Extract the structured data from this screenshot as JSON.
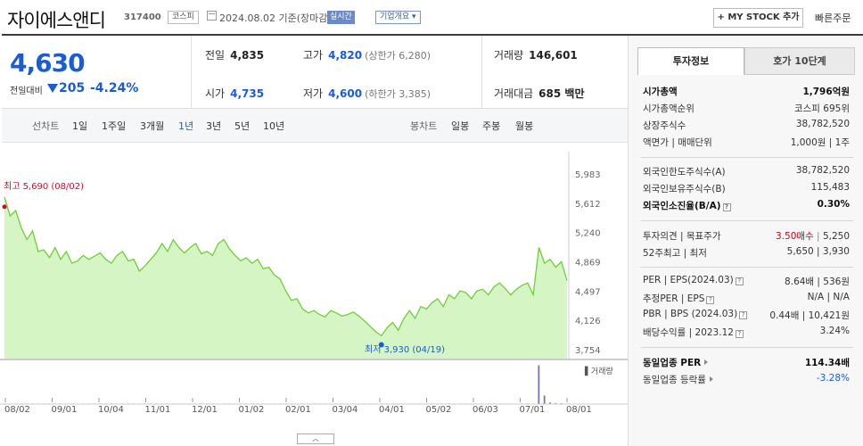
{
  "header": {
    "name": "자이에스앤디",
    "code": "317400",
    "market": "코스피",
    "date_text": "2024.08.02  기준(장마감)",
    "realtime": "실시간",
    "company_info": "기업개요",
    "my_stock_label": "+ MY STOCK 추가",
    "quick_order": "빠른주문"
  },
  "quote": {
    "price": "4,630",
    "change_label": "전일대비",
    "change": "205",
    "change_pct": "-4.24%",
    "prev_label": "전일",
    "prev": "4,835",
    "high_label": "고가",
    "high": "4,820",
    "upper_limit": "(상한가 6,280)",
    "volume_label": "거래량",
    "volume": "146,601",
    "open_label": "시가",
    "open": "4,735",
    "low_label": "저가",
    "low": "4,600",
    "lower_limit": "(하한가 3,385)",
    "amount_label": "거래대금",
    "amount": "685 백만"
  },
  "periods": {
    "line_label": "선차트",
    "line": [
      "1일",
      "1주일",
      "3개월",
      "1년",
      "3년",
      "5년",
      "10년"
    ],
    "active": "1년",
    "candle_label": "봉차트",
    "candle": [
      "일봉",
      "주봉",
      "월봉"
    ]
  },
  "chart_data": {
    "type": "area",
    "y_ticks": [
      "5,983",
      "5,612",
      "5,240",
      "4,869",
      "4,497",
      "4,126",
      "3,754"
    ],
    "ylim": [
      3754,
      5983
    ],
    "x_ticks": [
      "08/02",
      "09/01",
      "10/04",
      "11/01",
      "12/01",
      "01/02",
      "02/01",
      "03/04",
      "04/01",
      "05/02",
      "06/03",
      "07/01",
      "08/01"
    ],
    "values": [
      5690,
      5450,
      5520,
      5300,
      5150,
      5260,
      5000,
      5020,
      4920,
      5050,
      4900,
      5000,
      4850,
      4880,
      4950,
      4900,
      4940,
      4980,
      4900,
      4850,
      4950,
      5000,
      4880,
      4900,
      4750,
      4820,
      4900,
      4980,
      5100,
      5000,
      5150,
      5050,
      4980,
      5050,
      5100,
      4970,
      5000,
      4950,
      5100,
      5150,
      5030,
      4950,
      4880,
      4920,
      4850,
      4900,
      4780,
      4800,
      4700,
      4650,
      4500,
      4380,
      4400,
      4270,
      4220,
      4250,
      4200,
      4170,
      4250,
      4220,
      4180,
      4200,
      4230,
      4180,
      4120,
      4050,
      3980,
      3930,
      4030,
      4100,
      4000,
      4150,
      4250,
      4150,
      4300,
      4270,
      4350,
      4400,
      4300,
      4450,
      4400,
      4500,
      4480,
      4400,
      4500,
      4520,
      4450,
      4550,
      4600,
      4530,
      4450,
      4520,
      4570,
      4600,
      4450,
      5050,
      4850,
      4900,
      4800,
      4870,
      4630
    ],
    "annotations": {
      "high": "최고 5,690 (08/02)",
      "low": "최저 3,930 (04/19)"
    },
    "volume_label": "거래량",
    "volume": [
      20,
      20,
      20,
      20,
      20,
      20,
      20,
      20,
      20,
      20,
      20,
      20,
      20,
      20,
      20,
      20,
      20,
      20,
      20,
      20,
      20,
      20,
      20,
      20,
      20,
      20,
      20,
      20,
      20,
      20,
      20,
      20,
      20,
      20,
      20,
      20,
      20,
      20,
      20,
      20,
      20,
      20,
      20,
      20,
      20,
      20,
      20,
      20,
      20,
      20,
      20,
      20,
      20,
      20,
      20,
      20,
      20,
      20,
      20,
      20,
      20,
      20,
      20,
      20,
      20,
      20,
      20,
      20,
      20,
      20,
      20,
      20,
      20,
      20,
      20,
      20,
      20,
      20,
      20,
      20,
      20,
      20,
      20,
      20,
      20,
      20,
      20,
      20,
      20,
      20,
      20,
      20,
      20,
      20,
      20,
      1450,
      320,
      60,
      40,
      30,
      20
    ],
    "colors": {
      "line": "#6fcf35",
      "fill": "#bff0a6",
      "high": "#c8102e",
      "low": "#1a5bd6"
    }
  },
  "panel": {
    "tabs": [
      "투자정보",
      "호가 10단계"
    ],
    "rows1": [
      {
        "k": "시가총액",
        "v": "1,796억원",
        "bold": true
      },
      {
        "k": "시가총액순위",
        "v": "코스피 695위"
      },
      {
        "k": "상장주식수",
        "v": "38,782,520"
      },
      {
        "k": "액면가 | 매매단위",
        "v": "1,000원 | 1주"
      }
    ],
    "rows2": [
      {
        "k": "외국인한도주식수(A)",
        "v": "38,782,520"
      },
      {
        "k": "외국인보유주식수(B)",
        "v": "115,483"
      },
      {
        "k": "외국인소진율(B/A)",
        "v": "0.30%",
        "bold": true
      }
    ],
    "target": {
      "k": "투자의견 | 목표주가",
      "opinion": "3.50매수",
      "price": "5,250"
    },
    "week52": {
      "k": "52주최고 | 최저",
      "v": "5,650 | 3,930"
    },
    "per": {
      "k": "PER | EPS(2024.03)",
      "v": "8.64배 | 536원"
    },
    "est_per": {
      "k": "추정PER | EPS",
      "v": "N/A | N/A"
    },
    "pbr": {
      "k": "PBR | BPS (2024.03)",
      "v": "0.44배 | 10,421원"
    },
    "dividend": {
      "k": "배당수익률 | 2023.12",
      "v": "3.24%"
    },
    "industry_per": {
      "k": "동일업종 PER",
      "v": "114.34배"
    },
    "industry_rate": {
      "k": "동일업종 등락률",
      "v": "-3.28%"
    }
  }
}
